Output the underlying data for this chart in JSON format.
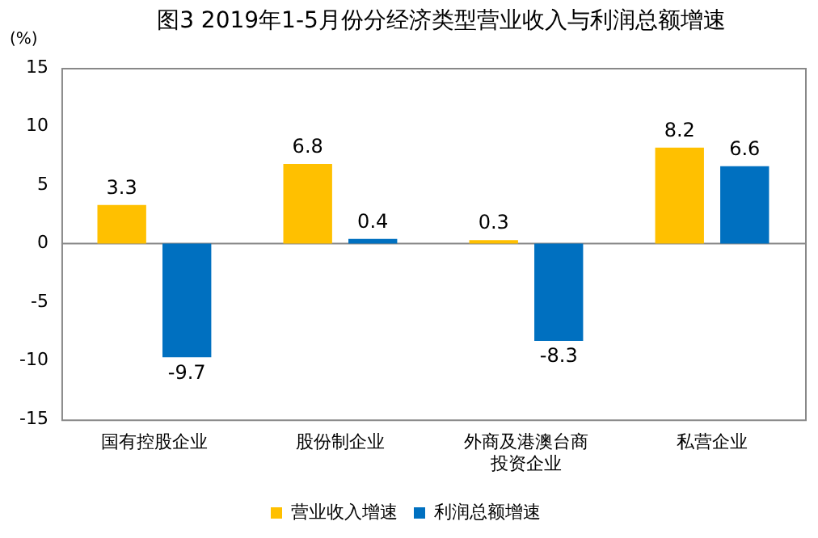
{
  "chart_data": {
    "type": "bar",
    "title": "图3 2019年1-5月份分经济类型营业收入与利润总额增速",
    "ylabel": "(%)",
    "categories": [
      "国有控股企业",
      "股份制企业",
      "外商及港澳台商投资企业",
      "私营企业"
    ],
    "series": [
      {
        "name": "营业收入增速",
        "color": "#ffc000",
        "values": [
          3.3,
          6.8,
          0.3,
          8.2
        ]
      },
      {
        "name": "利润总额增速",
        "color": "#0070c0",
        "values": [
          -9.7,
          0.4,
          -8.3,
          6.6
        ]
      }
    ],
    "ylim": [
      -15,
      15
    ],
    "yticks": [
      -15,
      -10,
      -5,
      0,
      5,
      10,
      15
    ],
    "legend": "bottom",
    "data_labels": true
  }
}
